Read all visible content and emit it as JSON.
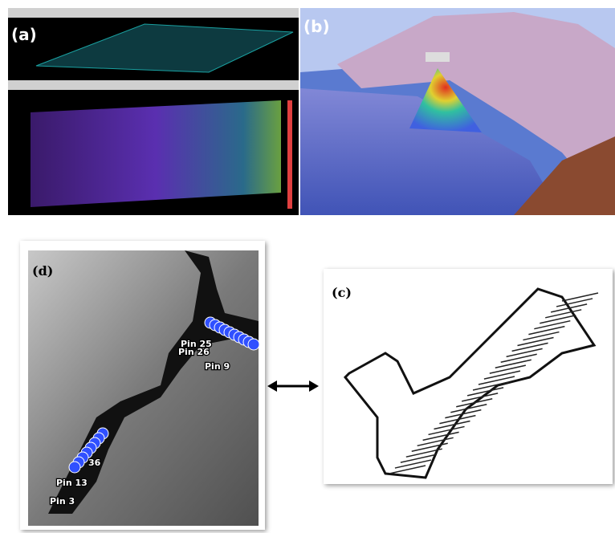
{
  "panels": {
    "a": {
      "label": "(a)"
    },
    "b": {
      "label": "(b)"
    },
    "c": {
      "label": "(c)"
    },
    "d": {
      "label": "(d)",
      "pins": [
        "Pin 25",
        "Pin 26",
        "Pin 9",
        "36",
        "Pin 13",
        "Pin 3"
      ]
    }
  }
}
